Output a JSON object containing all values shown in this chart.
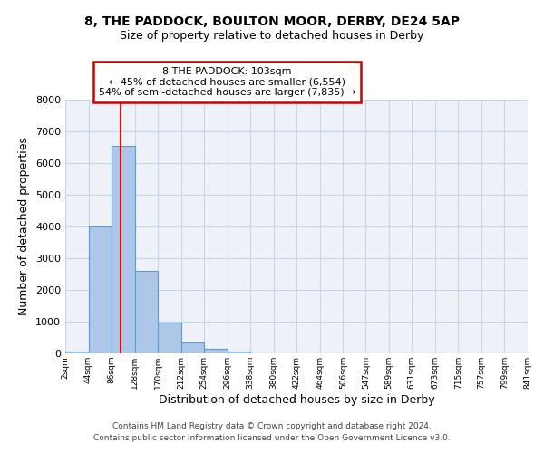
{
  "title": "8, THE PADDOCK, BOULTON MOOR, DERBY, DE24 5AP",
  "subtitle": "Size of property relative to detached houses in Derby",
  "xlabel": "Distribution of detached houses by size in Derby",
  "ylabel": "Number of detached properties",
  "bin_edges": [
    2,
    44,
    86,
    128,
    170,
    212,
    254,
    296,
    338,
    380,
    422,
    464,
    506,
    547,
    589,
    631,
    673,
    715,
    757,
    799,
    841
  ],
  "bin_heights": [
    70,
    4000,
    6550,
    2600,
    970,
    330,
    130,
    70,
    0,
    0,
    0,
    0,
    0,
    0,
    0,
    0,
    0,
    0,
    0,
    0
  ],
  "bar_color": "#aec6e8",
  "bar_edge_color": "#5b9bd5",
  "red_line_x": 103,
  "annotation_title": "8 THE PADDOCK: 103sqm",
  "annotation_line1": "← 45% of detached houses are smaller (6,554)",
  "annotation_line2": "54% of semi-detached houses are larger (7,835) →",
  "annotation_box_color": "#ffffff",
  "annotation_box_edge_color": "#cc0000",
  "ylim": [
    0,
    8000
  ],
  "tick_labels": [
    "2sqm",
    "44sqm",
    "86sqm",
    "128sqm",
    "170sqm",
    "212sqm",
    "254sqm",
    "296sqm",
    "338sqm",
    "380sqm",
    "422sqm",
    "464sqm",
    "506sqm",
    "547sqm",
    "589sqm",
    "631sqm",
    "673sqm",
    "715sqm",
    "757sqm",
    "799sqm",
    "841sqm"
  ],
  "footer1": "Contains HM Land Registry data © Crown copyright and database right 2024.",
  "footer2": "Contains public sector information licensed under the Open Government Licence v3.0.",
  "background_color": "#ffffff",
  "axes_bg_color": "#eef2f8",
  "grid_color": "#c8d4e8",
  "title_fontsize": 10,
  "subtitle_fontsize": 9
}
